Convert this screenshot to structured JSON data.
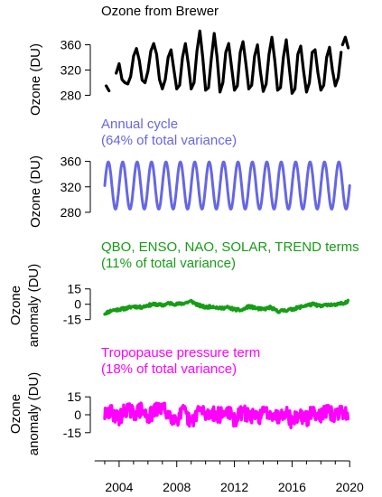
{
  "figure": {
    "xaxis": {
      "ticks": [
        2004,
        2008,
        2012,
        2016,
        2020
      ],
      "xlim": [
        2002.0,
        2020.8
      ]
    }
  },
  "chart_data": [
    {
      "type": "line",
      "title_lines": [
        "Ozone from Brewer"
      ],
      "title_color": "#000000",
      "ylabel_lines": [
        "Ozone (DU)"
      ],
      "yticks": [
        280,
        320,
        360
      ],
      "ylim": [
        262,
        388
      ],
      "series": [
        {
          "color": "#000000",
          "segments": [
            {
              "x": [
                2003.1,
                2003.3
              ],
              "y": [
                295,
                287
              ]
            },
            {
              "x": [
                2003.8,
                2004.0,
                2004.2,
                2004.4,
                2004.6,
                2004.8,
                2005.0,
                2005.2,
                2005.4,
                2005.6,
                2005.8,
                2006.0,
                2006.2,
                2006.4,
                2006.6,
                2006.8,
                2007.0,
                2007.2,
                2007.4,
                2007.6,
                2007.8,
                2008.0,
                2008.2,
                2008.4,
                2008.6,
                2008.8,
                2009.0,
                2009.2,
                2009.4,
                2009.6,
                2009.8,
                2010.0,
                2010.2,
                2010.4,
                2010.6,
                2010.8,
                2011.0,
                2011.2,
                2011.4,
                2011.6,
                2011.8,
                2012.0,
                2012.2,
                2012.4,
                2012.6,
                2012.8,
                2013.0,
                2013.2,
                2013.4,
                2013.6,
                2013.8,
                2014.0,
                2014.2,
                2014.4,
                2014.6,
                2014.8,
                2015.0,
                2015.2,
                2015.4,
                2015.6,
                2015.8,
                2016.0,
                2016.2,
                2016.4,
                2016.6,
                2016.8,
                2017.0,
                2017.2,
                2017.4,
                2017.6,
                2017.8,
                2018.0,
                2018.2,
                2018.4,
                2018.6,
                2018.8,
                2019.0,
                2019.2,
                2019.4
              ],
              "y": [
                315,
                330,
                305,
                300,
                298,
                310,
                342,
                354,
                335,
                304,
                300,
                318,
                350,
                362,
                345,
                305,
                290,
                305,
                340,
                352,
                320,
                290,
                296,
                340,
                362,
                330,
                290,
                300,
                350,
                382,
                340,
                288,
                292,
                338,
                378,
                340,
                285,
                300,
                348,
                362,
                325,
                288,
                295,
                348,
                365,
                330,
                290,
                296,
                342,
                360,
                318,
                286,
                298,
                345,
                372,
                335,
                288,
                292,
                340,
                368,
                325,
                283,
                290,
                345,
                358,
                318,
                285,
                300,
                348,
                352,
                315,
                288,
                296,
                340,
                356,
                320,
                295,
                308,
                348
              ]
            },
            {
              "x": [
                2019.5,
                2019.7,
                2019.9
              ],
              "y": [
                360,
                372,
                355
              ]
            }
          ]
        }
      ]
    },
    {
      "type": "line",
      "title_lines": [
        "Annual cycle",
        "(64% of total variance)"
      ],
      "title_color": "#6666e6",
      "ylabel_lines": [
        "Ozone (DU)"
      ],
      "yticks": [
        280,
        320,
        360
      ],
      "ylim": [
        270,
        375
      ],
      "series": [
        {
          "color": "#6666e6",
          "shape": {
            "kind": "annual_cycle",
            "mean": 322,
            "amplitude": 37,
            "peak_frac": 0.25,
            "start": 2003.0,
            "end": 2020.0,
            "step": 0.02
          }
        }
      ]
    },
    {
      "type": "line",
      "title_lines": [
        "QBO, ENSO, NAO, SOLAR, TREND terms",
        "(11% of total variance)"
      ],
      "title_color": "#169d16",
      "ylabel_lines": [
        "Ozone",
        "anomaly (DU)"
      ],
      "yticks": [
        -15,
        0,
        15
      ],
      "ylim": [
        -25,
        28
      ],
      "series": [
        {
          "color": "#169d16",
          "x": [
            2003.0,
            2003.5,
            2004.0,
            2004.5,
            2005.0,
            2005.5,
            2006.0,
            2006.5,
            2007.0,
            2007.5,
            2008.0,
            2008.5,
            2009.0,
            2009.5,
            2010.0,
            2010.5,
            2011.0,
            2011.5,
            2012.0,
            2012.5,
            2013.0,
            2013.5,
            2014.0,
            2014.5,
            2015.0,
            2015.5,
            2016.0,
            2016.5,
            2017.0,
            2017.5,
            2018.0,
            2018.5,
            2019.0,
            2019.5,
            2019.9
          ],
          "y": [
            -9,
            -6,
            -5,
            -4,
            -2,
            -3,
            -1,
            0,
            -1,
            1,
            0,
            1,
            3,
            -1,
            -3,
            -2,
            -4,
            -3,
            -5,
            -6,
            -2,
            -4,
            -5,
            -3,
            -7,
            -6,
            -5,
            -3,
            -1,
            0,
            -2,
            0,
            -1,
            1,
            3
          ],
          "noise": {
            "amp": 1.4,
            "step": 0.04,
            "seed": 11
          }
        }
      ]
    },
    {
      "type": "line",
      "title_lines": [
        "Tropopause pressure term",
        "(18% of total variance)"
      ],
      "title_color": "#ff00ff",
      "ylabel_lines": [
        "Ozone",
        "anomaly (DU)"
      ],
      "yticks": [
        -15,
        0,
        15
      ],
      "ylim": [
        -25,
        28
      ],
      "series": [
        {
          "color": "#ff00ff",
          "x": [
            2003.0,
            2003.5,
            2004.0,
            2004.5,
            2005.0,
            2005.5,
            2006.0,
            2006.5,
            2007.0,
            2007.5,
            2008.0,
            2008.5,
            2009.0,
            2009.5,
            2010.0,
            2010.5,
            2011.0,
            2011.5,
            2012.0,
            2012.5,
            2013.0,
            2013.5,
            2014.0,
            2014.5,
            2015.0,
            2015.5,
            2016.0,
            2016.5,
            2017.0,
            2017.5,
            2018.0,
            2018.5,
            2019.0,
            2019.5,
            2019.9
          ],
          "y": [
            0,
            2,
            -3,
            5,
            1,
            4,
            -2,
            3,
            6,
            0,
            -4,
            3,
            -8,
            5,
            0,
            2,
            -1,
            4,
            -5,
            2,
            0,
            -3,
            1,
            3,
            -2,
            4,
            -6,
            1,
            -4,
            3,
            0,
            2,
            -1,
            3,
            0
          ],
          "noise": {
            "amp": 6.5,
            "step": 0.04,
            "seed": 29
          }
        }
      ]
    }
  ]
}
